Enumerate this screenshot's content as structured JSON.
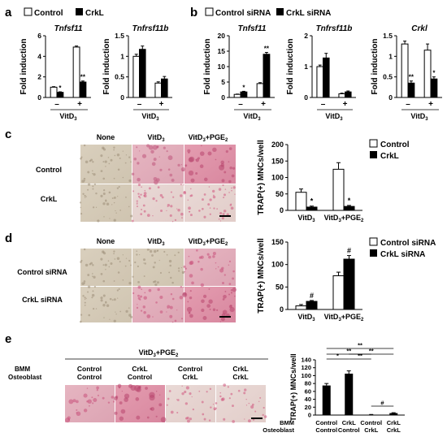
{
  "panels": {
    "a": {
      "letter": "a"
    },
    "b": {
      "letter": "b"
    },
    "c": {
      "letter": "c"
    },
    "d": {
      "letter": "d"
    },
    "e": {
      "letter": "e"
    }
  },
  "legend_a": {
    "control": "Control",
    "crkl": "CrkL"
  },
  "legend_b": {
    "control": "Control siRNA",
    "crkl": "CrkL siRNA"
  },
  "legend_c": {
    "control": "Control",
    "crkl": "CrkL"
  },
  "legend_d": {
    "control": "Control siRNA",
    "crkl": "CrkL siRNA"
  },
  "common": {
    "fold_induction": "Fold induction",
    "vitd_base": "VitD",
    "sub3": "3",
    "sub2": "2",
    "minus": "–",
    "plus": "+",
    "trap_label": "TRAP(+) MNCs/well",
    "vitd_pge_base": "VitD",
    "pge_text": "+PGE"
  },
  "micro_c": {
    "col_none": "None",
    "col_vitd": "VitD",
    "col_vitd_pge": "VitD",
    "row_control": "Control",
    "row_crkl": "CrkL"
  },
  "micro_d": {
    "col_none": "None",
    "col_vitd": "VitD",
    "col_vitd_pge": "VitD",
    "row_control": "Control siRNA",
    "row_crkl": "CrkL siRNA"
  },
  "micro_e": {
    "header": "VitD",
    "row_bmm": "BMM",
    "row_osteo": "Osteoblast",
    "cols": [
      {
        "bmm": "Control",
        "osteo": "Control"
      },
      {
        "bmm": "CrkL",
        "osteo": "Control"
      },
      {
        "bmm": "Control",
        "osteo": "CrkL"
      },
      {
        "bmm": "CrkL",
        "osteo": "CrkL"
      }
    ]
  },
  "chart_data": [
    {
      "panel": "a",
      "type": "bar",
      "title": "Tnfsf11",
      "ylabel": "Fold induction",
      "xlabel": "VitD3",
      "categories": [
        "–",
        "+"
      ],
      "ylim": [
        0,
        6
      ],
      "yticks": [
        "0",
        "2",
        "4",
        "6"
      ],
      "series": [
        {
          "name": "Control",
          "values": [
            1.0,
            4.9
          ],
          "errors": [
            0.05,
            0.1
          ]
        },
        {
          "name": "CrkL",
          "values": [
            0.5,
            1.5
          ],
          "errors": [
            0.05,
            0.1
          ]
        }
      ],
      "annotations": [
        {
          "text": "*"
        },
        {
          "text": "**"
        }
      ]
    },
    {
      "panel": "a",
      "type": "bar",
      "title": "Tnfrsf11b",
      "ylabel": "Fold induction",
      "xlabel": "VitD3",
      "categories": [
        "–",
        "+"
      ],
      "ylim": [
        0,
        1.5
      ],
      "yticks": [
        "0",
        "0.5",
        "1",
        "1.5"
      ],
      "series": [
        {
          "name": "Control",
          "values": [
            1.0,
            0.35
          ],
          "errors": [
            0.05,
            0.03
          ]
        },
        {
          "name": "CrkL",
          "values": [
            1.17,
            0.45
          ],
          "errors": [
            0.08,
            0.06
          ]
        }
      ]
    },
    {
      "panel": "b",
      "type": "bar",
      "title": "Tnfsf11",
      "ylabel": "Fold induction",
      "xlabel": "VitD3",
      "categories": [
        "–",
        "+"
      ],
      "ylim": [
        0,
        20
      ],
      "yticks": [
        "0",
        "5",
        "10",
        "15",
        "20"
      ],
      "series": [
        {
          "name": "Control siRNA",
          "values": [
            1.0,
            4.5
          ],
          "errors": [
            0.1,
            0.3
          ]
        },
        {
          "name": "CrkL siRNA",
          "values": [
            1.8,
            14.0
          ],
          "errors": [
            0.2,
            0.6
          ]
        }
      ],
      "annotations": [
        {
          "text": "*"
        },
        {
          "text": "**"
        }
      ]
    },
    {
      "panel": "b",
      "type": "bar",
      "title": "Tnfrsf11b",
      "ylabel": "Fold induction",
      "xlabel": "VitD3",
      "categories": [
        "–",
        "+"
      ],
      "ylim": [
        0,
        2
      ],
      "yticks": [
        "0",
        "1",
        "2"
      ],
      "series": [
        {
          "name": "Control siRNA",
          "values": [
            1.0,
            0.12
          ],
          "errors": [
            0.05,
            0.02
          ]
        },
        {
          "name": "CrkL siRNA",
          "values": [
            1.28,
            0.18
          ],
          "errors": [
            0.15,
            0.03
          ]
        }
      ]
    },
    {
      "panel": "b",
      "type": "bar",
      "title": "Crkl",
      "ylabel": "Fold induction",
      "xlabel": "VitD3",
      "categories": [
        "–",
        "+"
      ],
      "ylim": [
        0,
        1.5
      ],
      "yticks": [
        "0",
        "0.5",
        "1",
        "1.5"
      ],
      "series": [
        {
          "name": "Control siRNA",
          "values": [
            1.3,
            1.15
          ],
          "errors": [
            0.07,
            0.15
          ]
        },
        {
          "name": "CrkL siRNA",
          "values": [
            0.35,
            0.45
          ],
          "errors": [
            0.05,
            0.05
          ]
        }
      ],
      "annotations": [
        {
          "text": "**"
        },
        {
          "text": "*"
        }
      ]
    },
    {
      "panel": "c",
      "type": "bar",
      "ylabel": "TRAP(+) MNCs/well",
      "categories": [
        "VitD3",
        "VitD3+PGE2"
      ],
      "ylim": [
        0,
        200
      ],
      "yticks": [
        "0",
        "50",
        "100",
        "150",
        "200"
      ],
      "series": [
        {
          "name": "Control",
          "values": [
            55,
            125
          ],
          "errors": [
            10,
            20
          ]
        },
        {
          "name": "CrkL",
          "values": [
            10,
            12
          ],
          "errors": [
            3,
            3
          ]
        }
      ],
      "annotations": [
        {
          "text": "*"
        },
        {
          "text": "*"
        }
      ]
    },
    {
      "panel": "d",
      "type": "bar",
      "ylabel": "TRAP(+) MNCs/well",
      "categories": [
        "VitD3",
        "VitD3+PGE2"
      ],
      "ylim": [
        0,
        150
      ],
      "yticks": [
        "0",
        "50",
        "100",
        "150"
      ],
      "series": [
        {
          "name": "Control siRNA",
          "values": [
            8,
            75
          ],
          "errors": [
            3,
            8
          ]
        },
        {
          "name": "CrkL siRNA",
          "values": [
            18,
            112
          ],
          "errors": [
            2,
            8
          ]
        }
      ],
      "annotations": [
        {
          "text": "#"
        },
        {
          "text": "#"
        }
      ]
    },
    {
      "panel": "e",
      "type": "bar",
      "ylabel": "TRAP(+) MNCs/well",
      "categories": [
        "Control/Control",
        "CrkL/Control",
        "Control/CrkL",
        "CrkL/CrkL"
      ],
      "ylim": [
        0,
        140
      ],
      "yticks": [
        "0",
        "20",
        "40",
        "60",
        "80",
        "100",
        "120",
        "140"
      ],
      "series": [
        {
          "name": "",
          "values": [
            75,
            105,
            1,
            5
          ],
          "errors": [
            5,
            7,
            0.5,
            1
          ]
        }
      ],
      "significance": [
        "**",
        "**",
        "**",
        "*",
        "**",
        "#"
      ]
    }
  ]
}
